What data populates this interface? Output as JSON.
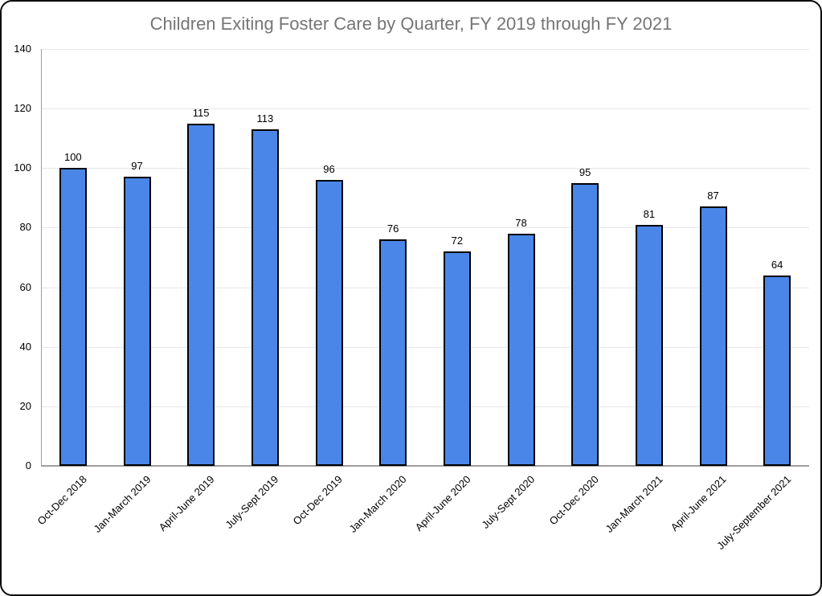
{
  "window": {
    "background_color": "#ffffff",
    "border_color": "#0b0b0b"
  },
  "chart_data": {
    "type": "bar",
    "title": "Children Exiting Foster Care by Quarter, FY 2019 through FY 2021",
    "categories": [
      "Oct-Dec 2018",
      "Jan-March 2019",
      "April-June 2019",
      "July-Sept 2019",
      "Oct-Dec 2019",
      "Jan-March 2020",
      "April-June 2020",
      "July-Sept 2020",
      "Oct-Dec 2020",
      "Jan-March 2021",
      "April-June 2021",
      "July-September 2021"
    ],
    "values": [
      100,
      97,
      115,
      113,
      96,
      76,
      72,
      78,
      95,
      81,
      87,
      64
    ],
    "xlabel": "",
    "ylabel": "",
    "ylim": [
      0,
      140
    ],
    "yticks": [
      0,
      20,
      40,
      60,
      80,
      100,
      120,
      140
    ],
    "grid": true,
    "legend_position": "none",
    "data_labels": true,
    "bar_fill_color": "#4a86e8",
    "bar_border_color": "#000000",
    "title_color": "#757575",
    "gridline_color": "#e6e6e6",
    "axis_line_color": "#9e9e9e",
    "tick_label_color": "#000000"
  }
}
